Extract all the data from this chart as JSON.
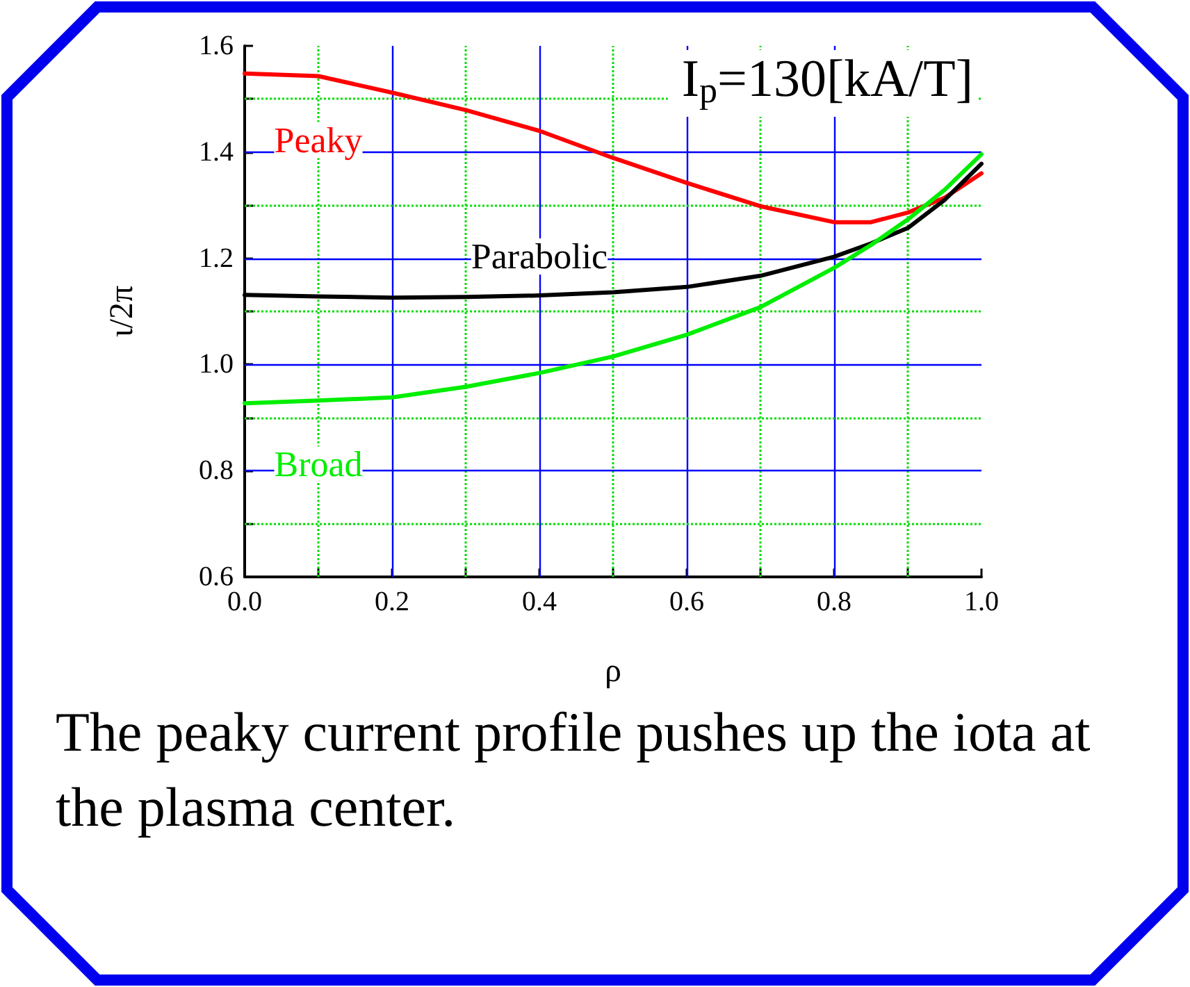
{
  "chart_data": {
    "type": "line",
    "xlabel": "ρ",
    "ylabel": "ι/2π",
    "annotations": [
      "I$_{p}$=130[kA/T]",
      "The peaky current profile pushes up the iota at the plasma center."
    ],
    "x": [
      0,
      0.1,
      0.2,
      0.3,
      0.4,
      0.5,
      0.6,
      0.7,
      0.8,
      0.85,
      0.9,
      0.95,
      1.0
    ],
    "series": [
      {
        "name": "Peaky",
        "color": "#ff0000",
        "values": [
          1.548,
          1.543,
          1.512,
          1.479,
          1.44,
          1.389,
          1.342,
          1.298,
          1.268,
          1.268,
          1.286,
          1.314,
          1.36
        ]
      },
      {
        "name": "Parabolic",
        "color": "#000000",
        "values": [
          1.131,
          1.128,
          1.126,
          1.127,
          1.13,
          1.136,
          1.146,
          1.167,
          1.203,
          1.228,
          1.257,
          1.31,
          1.378
        ]
      },
      {
        "name": "Broad",
        "color": "#00ee00",
        "values": [
          0.927,
          0.932,
          0.938,
          0.958,
          0.984,
          1.015,
          1.056,
          1.108,
          1.182,
          1.225,
          1.273,
          1.329,
          1.396
        ]
      }
    ],
    "xlim": [
      0,
      1.0
    ],
    "ylim": [
      0.6,
      1.6
    ],
    "xticks": [
      {
        "value": 0,
        "label": "0.0"
      },
      {
        "value": 0.1,
        "label": null
      },
      0.2,
      {
        "value": 0.3,
        "label": null
      },
      0.4,
      {
        "value": 0.5,
        "label": null
      },
      0.6,
      {
        "value": 0.7,
        "label": null
      },
      0.8,
      {
        "value": 0.9,
        "label": null
      },
      {
        "value": 1,
        "label": "1.0"
      }
    ],
    "yticks": [
      0.6,
      {
        "value": 0.7,
        "label": null
      },
      0.8,
      {
        "value": 0.9,
        "label": null
      },
      {
        "value": 1,
        "label": "1.0"
      },
      {
        "value": 1.1,
        "label": null
      },
      1.2,
      {
        "value": 1.3,
        "label": null
      },
      1.4,
      {
        "value": 1.5,
        "label": null
      },
      1.6
    ],
    "grid": true,
    "legend": false,
    "marker": "none",
    "line_style": "solid"
  }
}
